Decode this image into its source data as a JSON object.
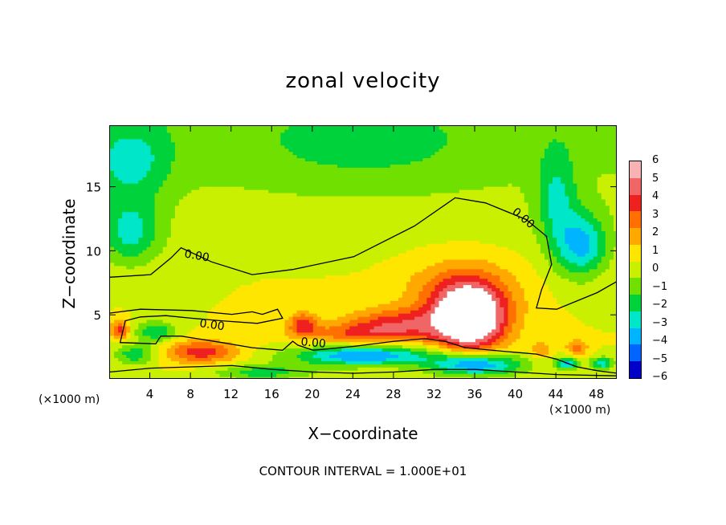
{
  "chart_data": {
    "type": "heatmap",
    "title": "zonal velocity",
    "xlabel": "X−coordinate",
    "ylabel": "Z−coordinate",
    "x_units_left": "(×1000 m)",
    "x_units_right": "(×1000 m)",
    "xlim": [
      0,
      50
    ],
    "ylim": [
      0,
      19.8
    ],
    "x_ticks": [
      4,
      8,
      12,
      16,
      20,
      24,
      28,
      32,
      36,
      40,
      44,
      48
    ],
    "y_ticks": [
      5,
      10,
      15
    ],
    "contour_interval_text": "CONTOUR INTERVAL = 1.000E+01",
    "zero_contour_labels": [
      "0.00",
      "0.00",
      "0.00",
      "0.00"
    ],
    "colorbar": {
      "levels": [
        6,
        5,
        4,
        3,
        2,
        1,
        0,
        -1,
        -2,
        -3,
        -4,
        -5,
        -6
      ],
      "labels": [
        "6",
        "5",
        "4",
        "3",
        "2",
        "1",
        "0",
        "−1",
        "−2",
        "−3",
        "−4",
        "−5",
        "−6"
      ],
      "colors": [
        "#f7b3b3",
        "#f06666",
        "#ee2020",
        "#ff7000",
        "#ffa800",
        "#ffe600",
        "#c8f000",
        "#70e000",
        "#00d23c",
        "#00e6c8",
        "#00b4ff",
        "#0064ff",
        "#0000c8",
        "#4a0096"
      ]
    },
    "field_centers": [
      {
        "x": 35.5,
        "z": 4.8,
        "v": 7.0,
        "sx": 3.4,
        "sz": 2.6
      },
      {
        "x": 34.5,
        "z": 6.5,
        "v": 2.5,
        "sx": 5.5,
        "sz": 3.0
      },
      {
        "x": 28,
        "z": 4.4,
        "v": 3.2,
        "sx": 5.0,
        "sz": 1.2
      },
      {
        "x": 19,
        "z": 4.4,
        "v": 3.4,
        "sx": 1.4,
        "sz": 0.9
      },
      {
        "x": 9,
        "z": 2.2,
        "v": 3.6,
        "sx": 3.5,
        "sz": 0.9
      },
      {
        "x": 24,
        "z": 3.6,
        "v": 2.2,
        "sx": 6.0,
        "sz": 0.8
      },
      {
        "x": 25,
        "z": 1.9,
        "v": -5.0,
        "sx": 7.0,
        "sz": 0.8
      },
      {
        "x": 36,
        "z": 1.2,
        "v": -5.5,
        "sx": 4.5,
        "sz": 0.9
      },
      {
        "x": 15,
        "z": 0.6,
        "v": -2.5,
        "sx": 5.0,
        "sz": 0.6
      },
      {
        "x": 4.5,
        "z": 3.8,
        "v": -3.0,
        "sx": 2.0,
        "sz": 0.8
      },
      {
        "x": 2.5,
        "z": 2.0,
        "v": -2.8,
        "sx": 2.0,
        "sz": 0.8
      },
      {
        "x": 1.0,
        "z": 3.9,
        "v": 3.5,
        "sx": 0.9,
        "sz": 0.7
      },
      {
        "x": 46.5,
        "z": 10.5,
        "v": -4.0,
        "sx": 2.5,
        "sz": 2.5
      },
      {
        "x": 44,
        "z": 14,
        "v": -2.5,
        "sx": 2.0,
        "sz": 4.0
      },
      {
        "x": 2,
        "z": 11.5,
        "v": -3.0,
        "sx": 3.0,
        "sz": 2.5
      },
      {
        "x": 2,
        "z": 17,
        "v": -2.5,
        "sx": 4.0,
        "sz": 3.0
      },
      {
        "x": 25,
        "z": 18,
        "v": -1.2,
        "sx": 12.0,
        "sz": 3.0
      },
      {
        "x": 46,
        "z": 2.5,
        "v": 2.8,
        "sx": 1.0,
        "sz": 0.6
      },
      {
        "x": 42.5,
        "z": 2.4,
        "v": 2.0,
        "sx": 1.0,
        "sz": 0.6
      },
      {
        "x": 45,
        "z": 1.3,
        "v": -4.0,
        "sx": 1.2,
        "sz": 0.5
      },
      {
        "x": 48.5,
        "z": 1.3,
        "v": -3.5,
        "sx": 1.2,
        "sz": 0.5
      }
    ],
    "zero_contour_upper": [
      [
        0,
        8.0
      ],
      [
        4,
        8.2
      ],
      [
        6,
        9.5
      ],
      [
        7,
        10.3
      ],
      [
        10,
        9.2
      ],
      [
        14,
        8.2
      ],
      [
        18,
        8.6
      ],
      [
        24,
        9.6
      ],
      [
        30,
        12
      ],
      [
        34,
        14.2
      ],
      [
        37,
        13.8
      ],
      [
        41,
        12.5
      ],
      [
        43,
        11.2
      ],
      [
        43.5,
        9.0
      ],
      [
        42.5,
        7.0
      ],
      [
        42,
        5.6
      ],
      [
        44,
        5.5
      ],
      [
        48,
        6.8
      ],
      [
        50,
        7.7
      ]
    ],
    "zero_contour_lower": [
      [
        0,
        5.2
      ],
      [
        3,
        5.5
      ],
      [
        8,
        5.4
      ],
      [
        12,
        5.1
      ],
      [
        14,
        5.3
      ],
      [
        15,
        5.1
      ],
      [
        16.5,
        5.5
      ],
      [
        17,
        4.8
      ],
      [
        14.5,
        4.4
      ],
      [
        11,
        4.6
      ],
      [
        8,
        4.8
      ],
      [
        5.5,
        5.0
      ],
      [
        3,
        4.9
      ],
      [
        1.5,
        4.6
      ],
      [
        1,
        2.9
      ],
      [
        4.5,
        2.8
      ],
      [
        5,
        3.4
      ],
      [
        7,
        3.4
      ],
      [
        11,
        2.9
      ],
      [
        14,
        2.5
      ],
      [
        17,
        2.3
      ],
      [
        18,
        3.0
      ],
      [
        18.5,
        2.7
      ],
      [
        20,
        2.3
      ],
      [
        24,
        2.6
      ],
      [
        28,
        3.0
      ],
      [
        31,
        3.2
      ],
      [
        33,
        3.0
      ],
      [
        35,
        2.5
      ],
      [
        39,
        2.2
      ],
      [
        42,
        2.0
      ],
      [
        44,
        1.6
      ],
      [
        46,
        1.0
      ],
      [
        48,
        0.7
      ],
      [
        50,
        0.5
      ]
    ],
    "zero_contour_bottom": [
      [
        0,
        0.6
      ],
      [
        4,
        0.9
      ],
      [
        8,
        1.0
      ],
      [
        12,
        1.1
      ],
      [
        16,
        0.8
      ],
      [
        20,
        0.6
      ],
      [
        24,
        0.5
      ],
      [
        28,
        0.6
      ],
      [
        32,
        0.8
      ],
      [
        36,
        0.8
      ],
      [
        40,
        0.6
      ],
      [
        44,
        0.4
      ],
      [
        50,
        0.3
      ]
    ]
  }
}
